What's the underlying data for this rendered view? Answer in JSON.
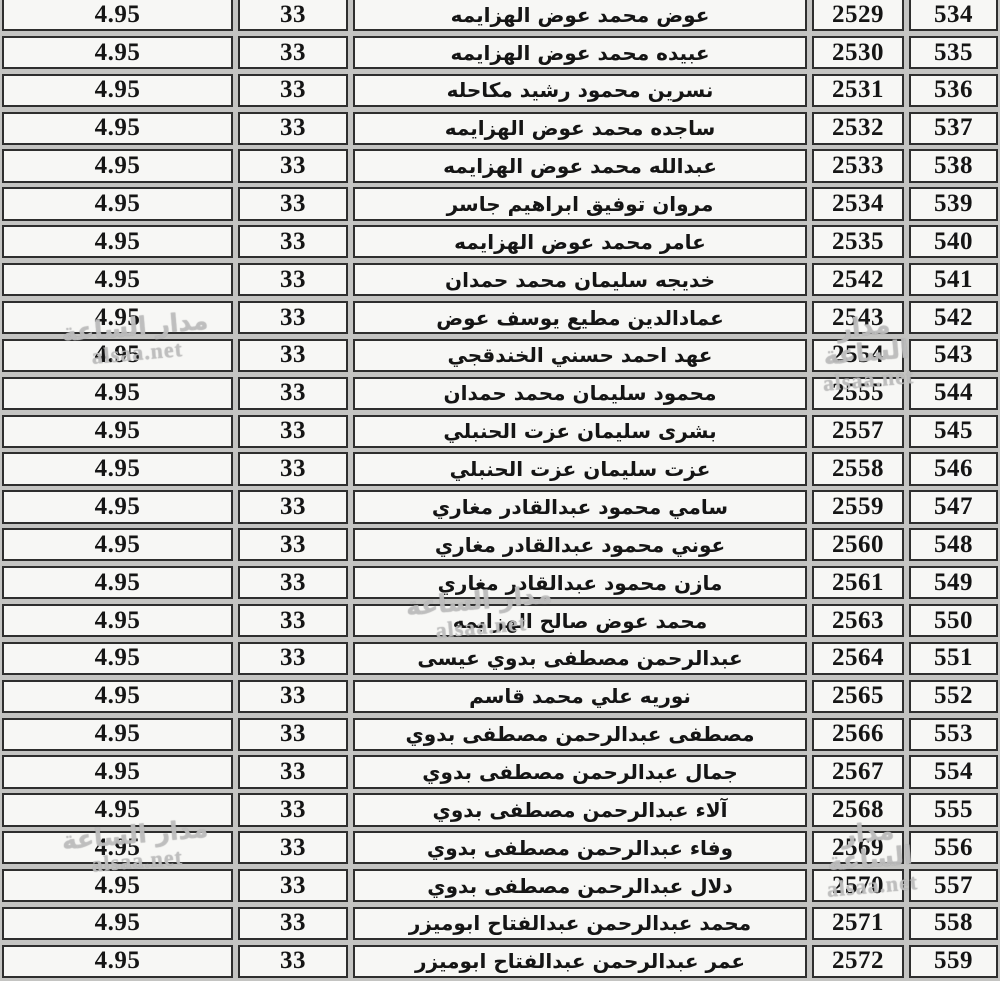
{
  "table": {
    "rows": [
      {
        "serial": "534",
        "number": "2529",
        "name": "عوض محمد عوض الهزايمه",
        "mark": "33",
        "average": "4.95"
      },
      {
        "serial": "535",
        "number": "2530",
        "name": "عبيده محمد عوض الهزايمه",
        "mark": "33",
        "average": "4.95"
      },
      {
        "serial": "536",
        "number": "2531",
        "name": "نسرين محمود رشيد مكاحله",
        "mark": "33",
        "average": "4.95"
      },
      {
        "serial": "537",
        "number": "2532",
        "name": "ساجده محمد عوض الهزايمه",
        "mark": "33",
        "average": "4.95"
      },
      {
        "serial": "538",
        "number": "2533",
        "name": "عبدالله محمد عوض الهزايمه",
        "mark": "33",
        "average": "4.95"
      },
      {
        "serial": "539",
        "number": "2534",
        "name": "مروان توفيق ابراهيم جاسر",
        "mark": "33",
        "average": "4.95"
      },
      {
        "serial": "540",
        "number": "2535",
        "name": "عامر محمد عوض الهزايمه",
        "mark": "33",
        "average": "4.95"
      },
      {
        "serial": "541",
        "number": "2542",
        "name": "خديجه سليمان محمد حمدان",
        "mark": "33",
        "average": "4.95"
      },
      {
        "serial": "542",
        "number": "2543",
        "name": "عمادالدين مطيع يوسف عوض",
        "mark": "33",
        "average": "4.95"
      },
      {
        "serial": "543",
        "number": "2554",
        "name": "عهد احمد حسني الخندقجي",
        "mark": "33",
        "average": "4.95"
      },
      {
        "serial": "544",
        "number": "2555",
        "name": "محمود سليمان محمد حمدان",
        "mark": "33",
        "average": "4.95"
      },
      {
        "serial": "545",
        "number": "2557",
        "name": "بشرى سليمان عزت الحنبلي",
        "mark": "33",
        "average": "4.95"
      },
      {
        "serial": "546",
        "number": "2558",
        "name": "عزت سليمان عزت الحنبلي",
        "mark": "33",
        "average": "4.95"
      },
      {
        "serial": "547",
        "number": "2559",
        "name": "سامي محمود عبدالقادر مغاري",
        "mark": "33",
        "average": "4.95"
      },
      {
        "serial": "548",
        "number": "2560",
        "name": "عوني محمود عبدالقادر مغاري",
        "mark": "33",
        "average": "4.95"
      },
      {
        "serial": "549",
        "number": "2561",
        "name": "مازن محمود عبدالقادر مغاري",
        "mark": "33",
        "average": "4.95"
      },
      {
        "serial": "550",
        "number": "2563",
        "name": "محمد عوض صالح الهزايمه",
        "mark": "33",
        "average": "4.95"
      },
      {
        "serial": "551",
        "number": "2564",
        "name": "عبدالرحمن مصطفى بدوي عيسى",
        "mark": "33",
        "average": "4.95"
      },
      {
        "serial": "552",
        "number": "2565",
        "name": "نوريه علي محمد قاسم",
        "mark": "33",
        "average": "4.95"
      },
      {
        "serial": "553",
        "number": "2566",
        "name": "مصطفى عبدالرحمن مصطفى بدوي",
        "mark": "33",
        "average": "4.95"
      },
      {
        "serial": "554",
        "number": "2567",
        "name": "جمال عبدالرحمن مصطفى بدوي",
        "mark": "33",
        "average": "4.95"
      },
      {
        "serial": "555",
        "number": "2568",
        "name": "آلاء عبدالرحمن مصطفى بدوي",
        "mark": "33",
        "average": "4.95"
      },
      {
        "serial": "556",
        "number": "2569",
        "name": "وفاء عبدالرحمن مصطفى بدوي",
        "mark": "33",
        "average": "4.95"
      },
      {
        "serial": "557",
        "number": "2570",
        "name": "دلال عبدالرحمن مصطفى بدوي",
        "mark": "33",
        "average": "4.95"
      },
      {
        "serial": "558",
        "number": "2571",
        "name": "محمد عبدالرحمن عبدالفتاح ابوميزر",
        "mark": "33",
        "average": "4.95"
      },
      {
        "serial": "559",
        "number": "2572",
        "name": "عمر عبدالرحمن عبدالفتاح ابوميزر",
        "mark": "33",
        "average": "4.95"
      }
    ]
  },
  "watermark": {
    "line1": "مدار الساعة",
    "line2": "alsaa.net"
  },
  "colors": {
    "page_bg": "#c4c4c2",
    "cell_bg": "#f7f7f5",
    "border": "#2e2e2e",
    "text": "#151515"
  }
}
